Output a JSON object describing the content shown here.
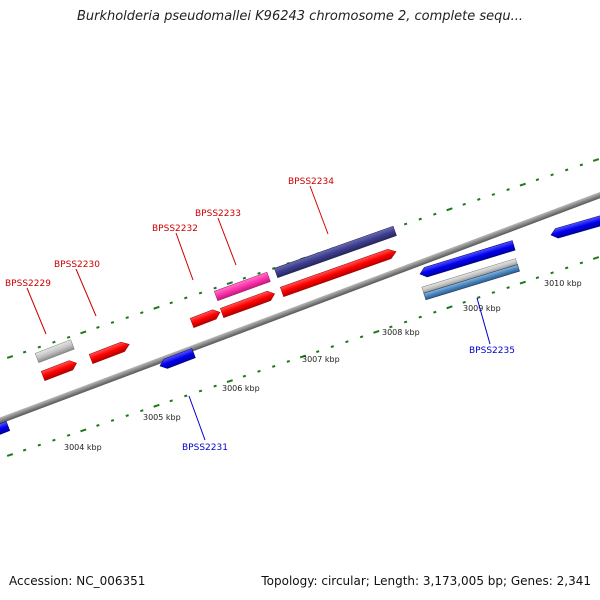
{
  "title": "Burkholderia pseudomallei K96243 chromosome 2, complete sequ...",
  "footer": {
    "accession": "Accession: NC_006351",
    "summary": "Topology: circular; Length: 3,173,005 bp; Genes: 2,341"
  },
  "colors": {
    "forward_gene": "#ff0000",
    "reverse_gene": "#0000ff",
    "forward_label": "#cc0000",
    "reverse_label": "#0000cc",
    "backbone": "#888888",
    "tick_marks": "#1a7a1a",
    "dark_feature": "#3d3d8f",
    "magenta_feature": "#ff33aa",
    "grey_feature": "#c4c4c4",
    "steel_feature": "#4a86c0"
  },
  "ruler": {
    "unit": "kbp",
    "labels": [
      "3004 kbp",
      "3005 kbp",
      "3006 kbp",
      "3007 kbp",
      "3008 kbp",
      "3009 kbp",
      "3010 kbp"
    ]
  },
  "genes": [
    {
      "id": "BPSS2229",
      "strand": "forward",
      "kind": "rna-grey"
    },
    {
      "id": "BPSS2230",
      "strand": "forward",
      "kind": "cds"
    },
    {
      "id": "BPSS2231",
      "strand": "reverse",
      "kind": "cds"
    },
    {
      "id": "BPSS2232",
      "strand": "forward",
      "kind": "cds"
    },
    {
      "id": "BPSS2233",
      "strand": "forward",
      "kind": "magenta"
    },
    {
      "id": "BPSS2234",
      "strand": "forward",
      "kind": "dark"
    },
    {
      "id": "BPSS2235",
      "strand": "reverse",
      "kind": "cds"
    }
  ]
}
